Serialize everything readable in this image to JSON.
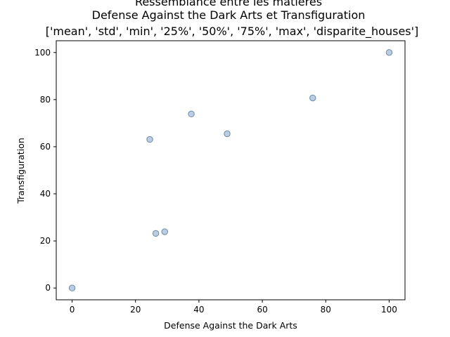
{
  "chart_data": {
    "type": "scatter",
    "title": [
      "Ressemblance entre les matières",
      "Defense Against the Dark Arts et Transfiguration",
      "['mean', 'std', 'min', '25%', '50%', '75%', 'max', 'disparite_houses']"
    ],
    "xlabel": "Defense Against the Dark Arts",
    "ylabel": "Transfiguration",
    "xlim": [
      -5,
      105
    ],
    "ylim": [
      -5,
      105
    ],
    "xticks": [
      0,
      20,
      40,
      60,
      80,
      100
    ],
    "yticks": [
      0,
      20,
      40,
      60,
      80,
      100
    ],
    "grid": false,
    "series": [
      {
        "marker_color": "#b0c4de",
        "marker_edge_color": "#6b8aa6",
        "points": [
          {
            "x": 100.0,
            "y": 100.0
          },
          {
            "x": 75.9,
            "y": 80.7
          },
          {
            "x": 37.6,
            "y": 73.9
          },
          {
            "x": 48.9,
            "y": 65.5
          },
          {
            "x": 24.5,
            "y": 63.1
          },
          {
            "x": 29.2,
            "y": 23.9
          },
          {
            "x": 26.4,
            "y": 23.2
          },
          {
            "x": 0.0,
            "y": 0.0
          }
        ]
      }
    ]
  }
}
